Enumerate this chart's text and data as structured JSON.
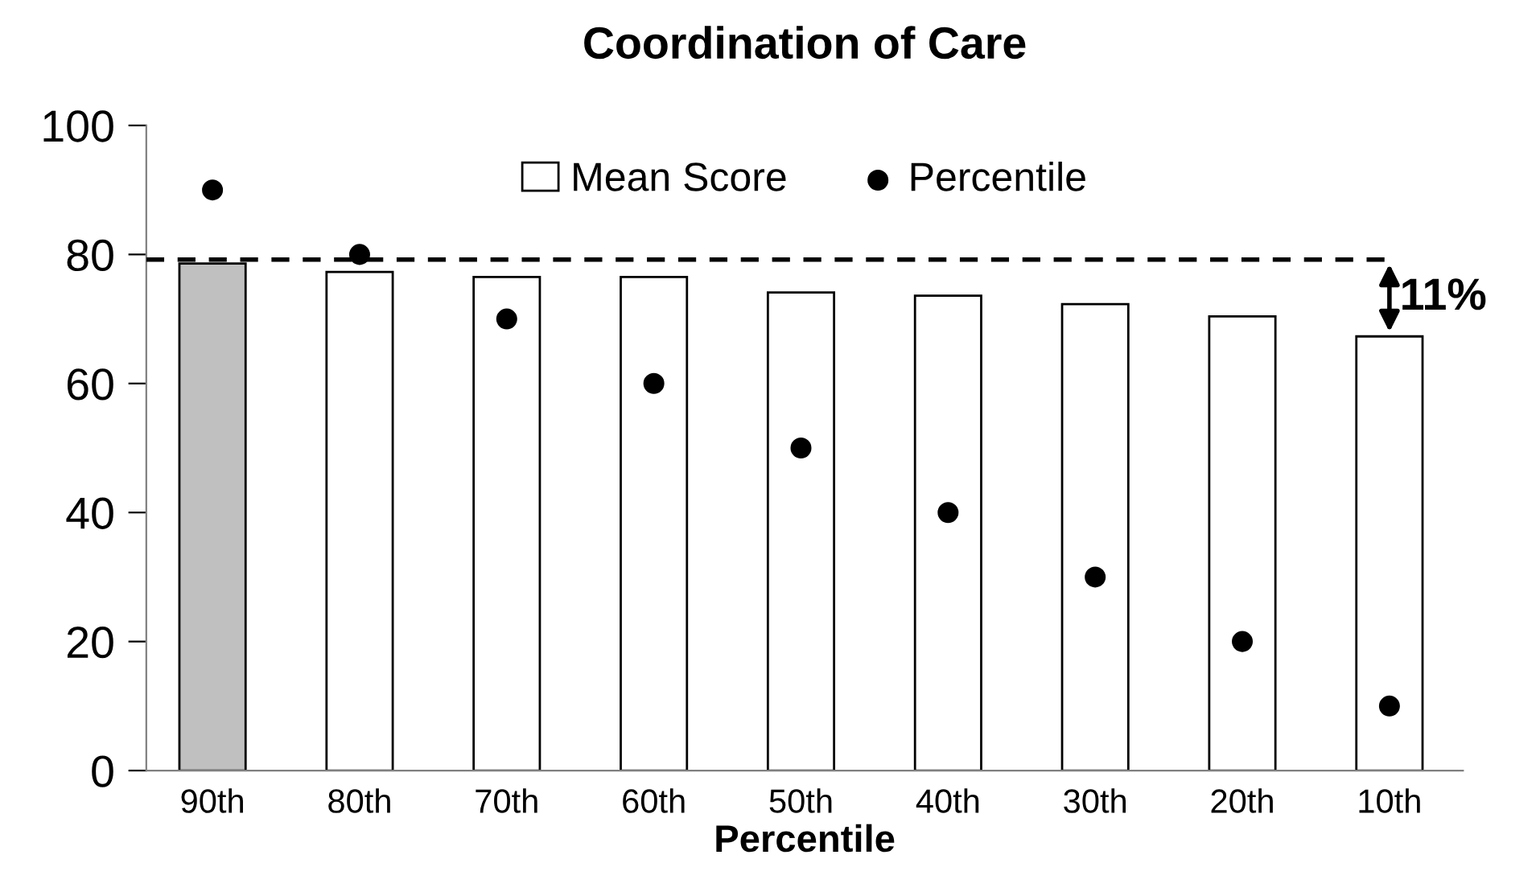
{
  "chart_data": {
    "type": "bar",
    "title": "Coordination of Care",
    "xlabel": "Percentile",
    "categories": [
      "90th",
      "80th",
      "70th",
      "60th",
      "50th",
      "40th",
      "30th",
      "20th",
      "10th"
    ],
    "series": [
      {
        "name": "Mean Score",
        "colors": [
          "#c0c0c0",
          "#ffffff",
          "#ffffff",
          "#ffffff",
          "#ffffff",
          "#ffffff",
          "#ffffff",
          "#ffffff",
          "#ffffff"
        ],
        "values": [
          78.6,
          77.3,
          76.5,
          76.5,
          74.1,
          73.6,
          72.3,
          70.4,
          67.3
        ]
      },
      {
        "name": "Percentile",
        "type": "scatter",
        "color": "#000000",
        "marker": "circle",
        "x": [
          "90th",
          "80th",
          "70th",
          "60th",
          "50th",
          "40th",
          "30th",
          "20th",
          "10th"
        ],
        "values": [
          90,
          80,
          70,
          60,
          50,
          40,
          30,
          20,
          10
        ]
      }
    ],
    "ref_lines": [
      {
        "axis": "y",
        "value": 79.2,
        "color": "#000000",
        "line_style": "dashed"
      }
    ],
    "annotations": [
      {
        "text": "11%",
        "x": "10th",
        "y": 67.3
      }
    ],
    "ylim": [
      0,
      100
    ],
    "yticks": [
      0,
      20,
      40,
      60,
      80,
      100
    ],
    "grid": false,
    "legend": "top"
  }
}
